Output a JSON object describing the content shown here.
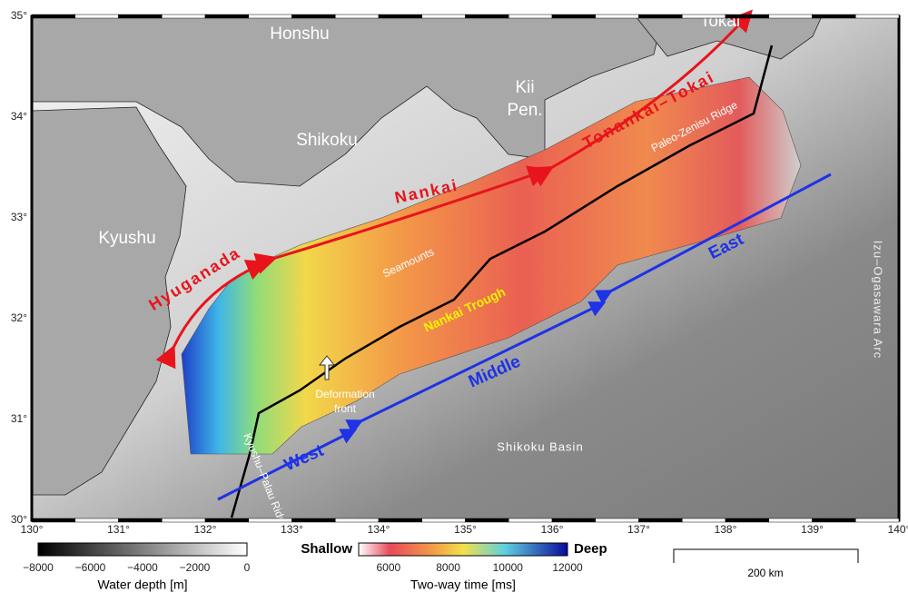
{
  "map": {
    "lon_ticks": [
      "130°",
      "131°",
      "132°",
      "133°",
      "134°",
      "135°",
      "136°",
      "137°",
      "138°",
      "139°",
      "140°"
    ],
    "lat_ticks": [
      "30°",
      "31°",
      "32°",
      "33°",
      "34°",
      "35°"
    ],
    "labels": {
      "honshu": "Honshu",
      "tokai": "Tokai",
      "kii": "Kii",
      "pen": "Pen.",
      "shikoku": "Shikoku",
      "kyushu": "Kyushu",
      "tonankai": "Tonankai–Tokai",
      "nankai": "Nankai",
      "hyuganada": "Hyuganada",
      "seamounts": "Seamounts",
      "trough": "Nankai Trough",
      "paleo": "Paleo-Zenisu Ridge",
      "deformation": "Deformation",
      "front": "front",
      "izu": "Izu–Ogasawara Arc",
      "palau": "Kyushu–Palau Ridge",
      "basin": "Shikoku Basin",
      "west": "West",
      "middle": "Middle",
      "east": "East"
    }
  },
  "legend": {
    "depth": {
      "title": "Water depth [m]",
      "ticks": [
        "−8000",
        "−6000",
        "−4000",
        "−2000",
        "0"
      ]
    },
    "twt": {
      "title": "Two-way time [ms]",
      "shallow": "Shallow",
      "deep": "Deep",
      "ticks": [
        "6000",
        "8000",
        "10000",
        "12000"
      ]
    },
    "scale": "200 km"
  }
}
